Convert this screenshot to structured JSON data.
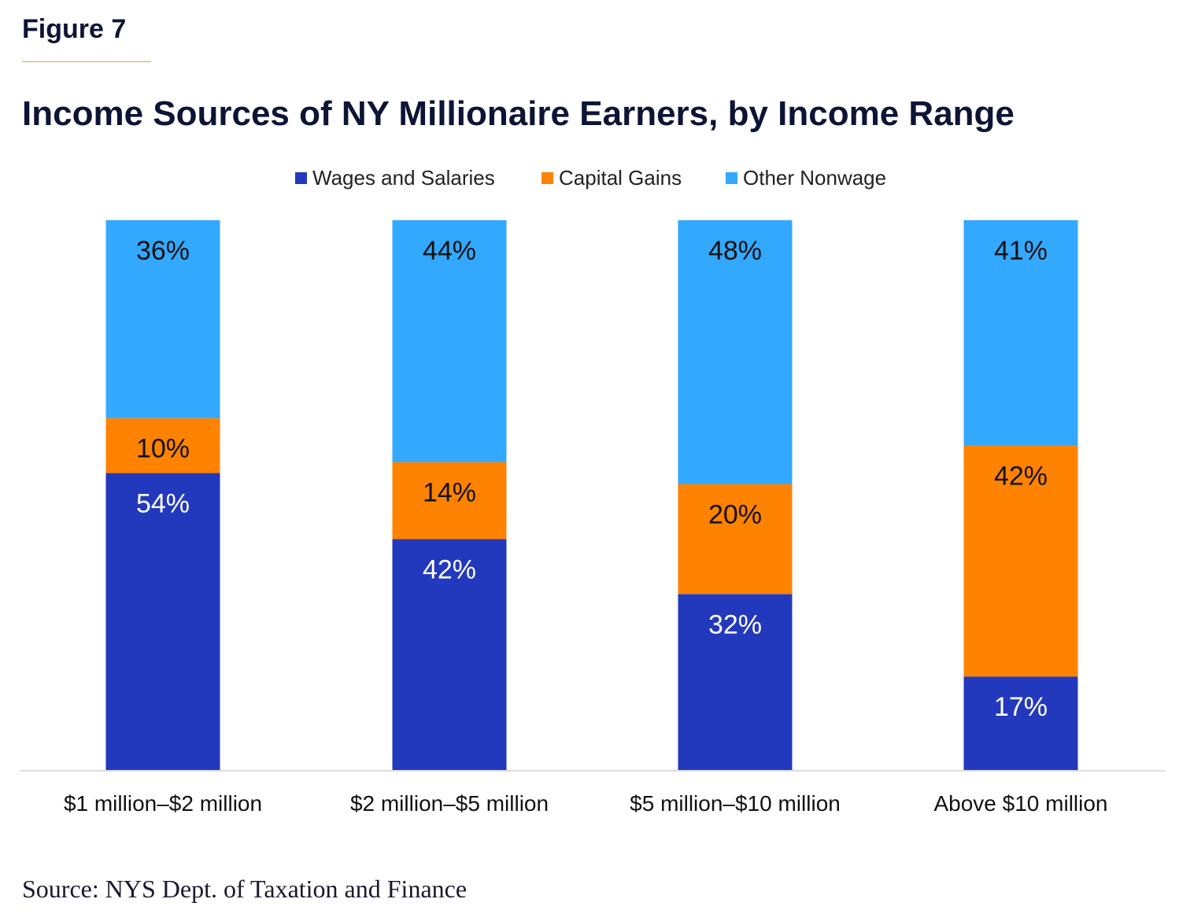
{
  "figure_label": "Figure 7",
  "source": "Source: NYS Dept. of Taxation and Finance",
  "chart_data": {
    "type": "bar",
    "stacked": true,
    "title": "Income Sources of NY Millionaire Earners, by Income Range",
    "categories": [
      "$1 million–$2 million",
      "$2 million–$5 million",
      "$5 million–$10 million",
      "Above $10 million"
    ],
    "series": [
      {
        "name": "Wages and Salaries",
        "color": "#2339bd",
        "values": [
          54,
          42,
          32,
          17
        ],
        "labels": [
          "54%",
          "42%",
          "32%",
          "17%"
        ]
      },
      {
        "name": "Capital Gains",
        "color": "#ff8200",
        "values": [
          10,
          14,
          20,
          42
        ],
        "labels": [
          "10%",
          "14%",
          "20%",
          "42%"
        ]
      },
      {
        "name": "Other Nonwage",
        "color": "#33a8ff",
        "values": [
          36,
          44,
          48,
          41
        ],
        "labels": [
          "36%",
          "44%",
          "48%",
          "41%"
        ]
      }
    ],
    "ylim": [
      0,
      100
    ],
    "legend_position": "top-center",
    "grid": false
  }
}
